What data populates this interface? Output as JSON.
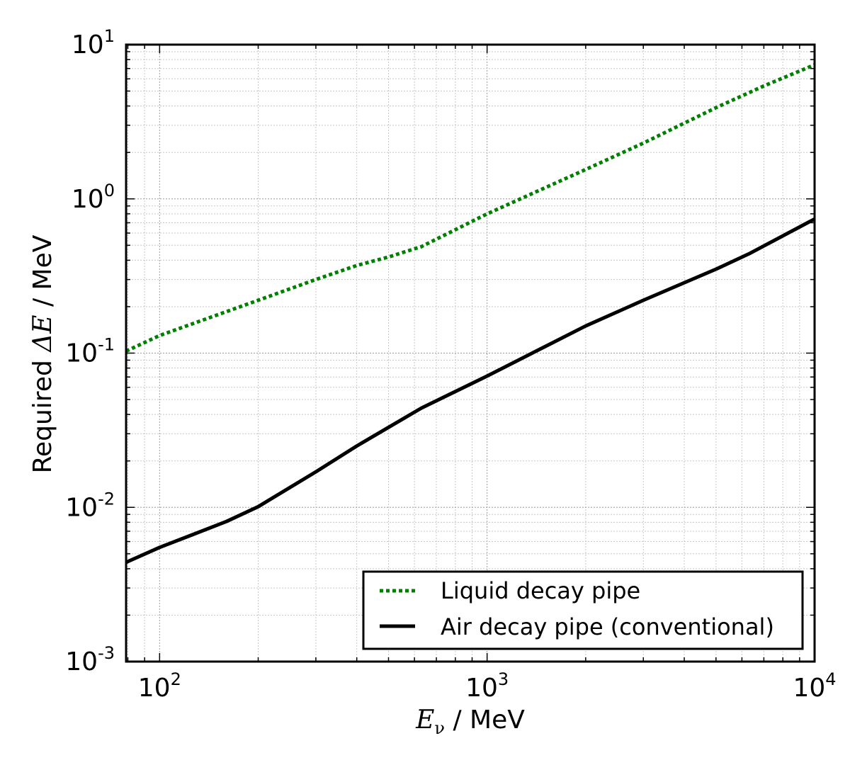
{
  "chart_data": {
    "type": "line",
    "title": "",
    "xscale": "log",
    "yscale": "log",
    "xlim": [
      79,
      10000
    ],
    "ylim": [
      0.001,
      10
    ],
    "grid": true,
    "legend_position": "bottom-right",
    "xlabel": {
      "symbol": "E",
      "subscript": "ν",
      "unit": " / MeV"
    },
    "ylabel": {
      "prefix": "Required ",
      "symbol": "ΔE",
      "unit": " / MeV"
    },
    "xticks": [
      {
        "value": 100,
        "base": "10",
        "exp": "2"
      },
      {
        "value": 1000,
        "base": "10",
        "exp": "3"
      },
      {
        "value": 10000,
        "base": "10",
        "exp": "4"
      }
    ],
    "yticks": [
      {
        "value": 0.001,
        "base": "10",
        "exp": "-3"
      },
      {
        "value": 0.01,
        "base": "10",
        "exp": "-2"
      },
      {
        "value": 0.1,
        "base": "10",
        "exp": "-1"
      },
      {
        "value": 1,
        "base": "10",
        "exp": "0"
      },
      {
        "value": 10,
        "base": "10",
        "exp": "1"
      }
    ],
    "series": [
      {
        "name": "Liquid decay pipe",
        "color": "#008000",
        "style": "dotted",
        "x": [
          79,
          100,
          200,
          300,
          400,
          500,
          630,
          1000,
          2000,
          3000,
          5000,
          7000,
          10000
        ],
        "y": [
          0.103,
          0.13,
          0.22,
          0.3,
          0.37,
          0.42,
          0.49,
          0.8,
          1.55,
          2.3,
          3.9,
          5.4,
          7.4
        ]
      },
      {
        "name": "Air decay pipe (conventional)",
        "color": "#000000",
        "style": "solid",
        "x": [
          79,
          100,
          125,
          160,
          200,
          300,
          400,
          500,
          630,
          1000,
          1500,
          2000,
          3000,
          5000,
          6300,
          10000
        ],
        "y": [
          0.0044,
          0.0055,
          0.0066,
          0.0081,
          0.0101,
          0.017,
          0.025,
          0.033,
          0.044,
          0.071,
          0.11,
          0.15,
          0.22,
          0.35,
          0.44,
          0.74
        ]
      }
    ]
  }
}
